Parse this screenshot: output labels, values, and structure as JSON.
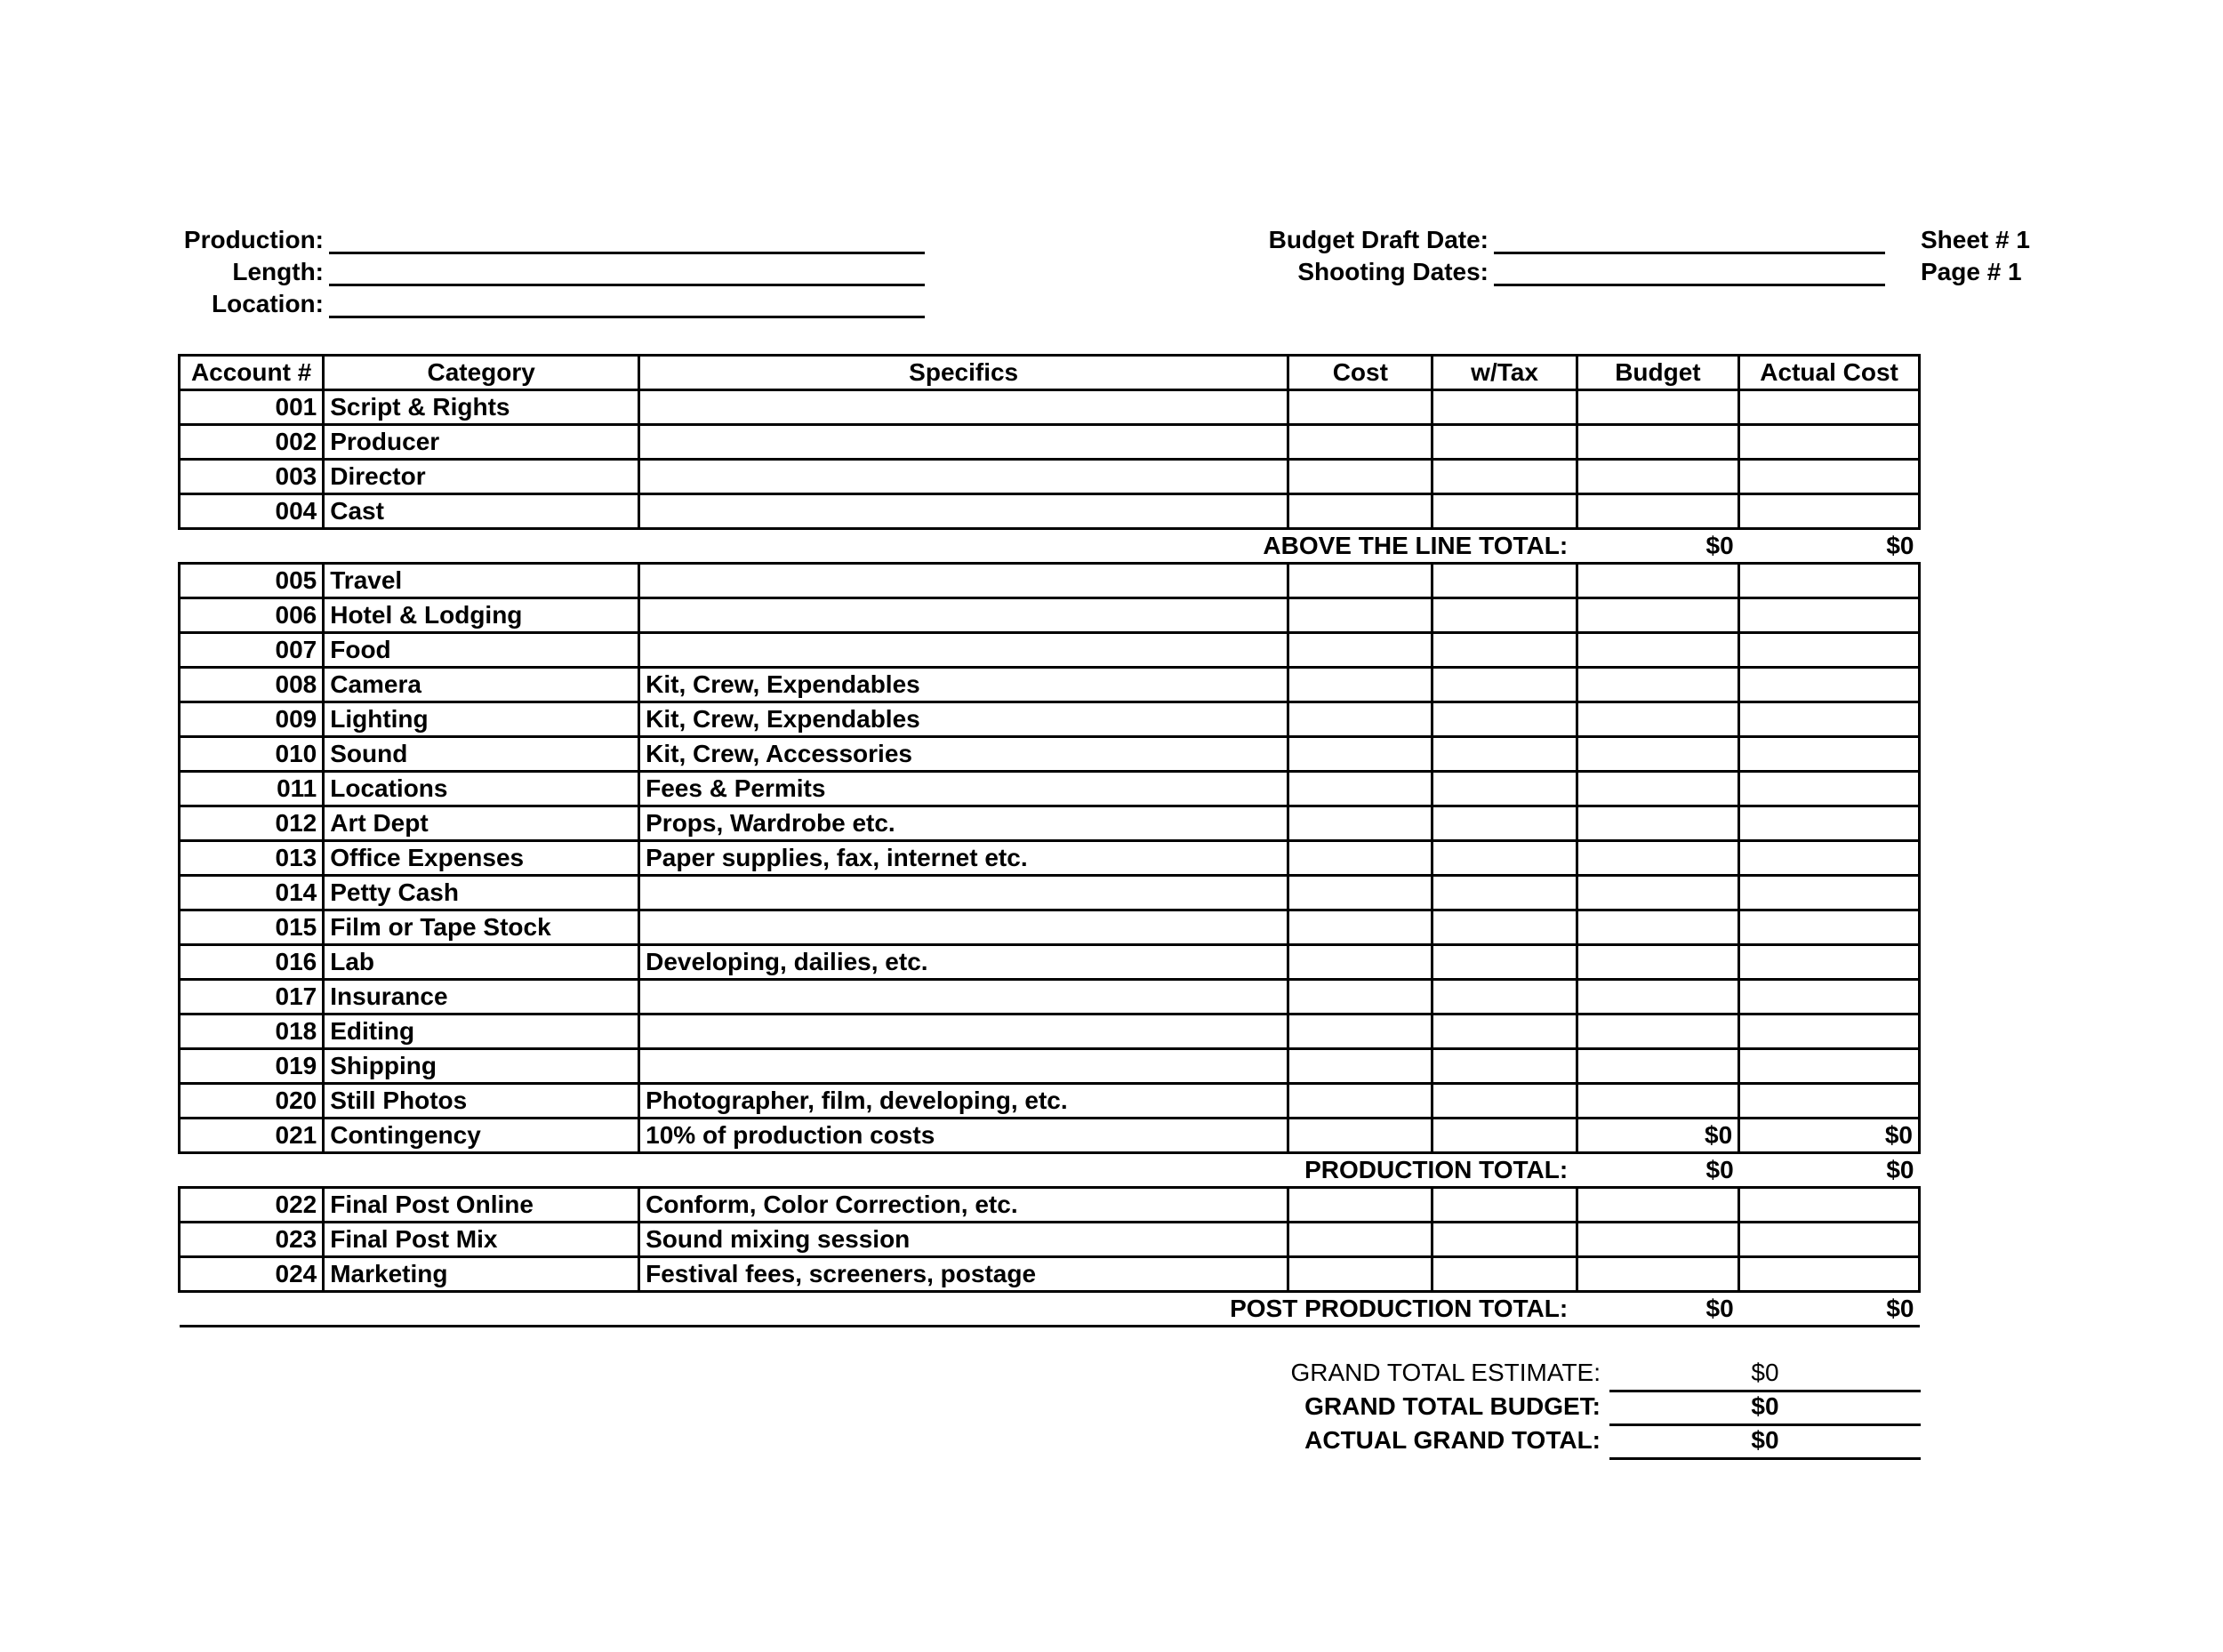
{
  "header": {
    "production_label": "Production:",
    "length_label": "Length:",
    "location_label": "Location:",
    "budget_draft_label": "Budget Draft Date:",
    "shooting_dates_label": "Shooting Dates:",
    "sheet_label": "Sheet # 1",
    "page_label": "Page # 1"
  },
  "columns": {
    "account": "Account #",
    "category": "Category",
    "specifics": "Specifics",
    "cost": "Cost",
    "wtax": "w/Tax",
    "budget": "Budget",
    "actual": "Actual Cost"
  },
  "above_line": [
    {
      "acc": "001",
      "cat": "Script & Rights",
      "spec": "",
      "cost": "",
      "tax": "",
      "bud": "",
      "act": ""
    },
    {
      "acc": "002",
      "cat": "Producer",
      "spec": "",
      "cost": "",
      "tax": "",
      "bud": "",
      "act": ""
    },
    {
      "acc": "003",
      "cat": "Director",
      "spec": "",
      "cost": "",
      "tax": "",
      "bud": "",
      "act": ""
    },
    {
      "acc": "004",
      "cat": "Cast",
      "spec": "",
      "cost": "",
      "tax": "",
      "bud": "",
      "act": ""
    }
  ],
  "above_line_total": {
    "label": "ABOVE THE LINE TOTAL:",
    "bud": "$0",
    "act": "$0"
  },
  "production": [
    {
      "acc": "005",
      "cat": "Travel",
      "spec": "",
      "cost": "",
      "tax": "",
      "bud": "",
      "act": ""
    },
    {
      "acc": "006",
      "cat": "Hotel & Lodging",
      "spec": "",
      "cost": "",
      "tax": "",
      "bud": "",
      "act": ""
    },
    {
      "acc": "007",
      "cat": "Food",
      "spec": "",
      "cost": "",
      "tax": "",
      "bud": "",
      "act": ""
    },
    {
      "acc": "008",
      "cat": "Camera",
      "spec": "Kit, Crew, Expendables",
      "cost": "",
      "tax": "",
      "bud": "",
      "act": ""
    },
    {
      "acc": "009",
      "cat": "Lighting",
      "spec": "Kit, Crew, Expendables",
      "cost": "",
      "tax": "",
      "bud": "",
      "act": ""
    },
    {
      "acc": "010",
      "cat": "Sound",
      "spec": "Kit, Crew, Accessories",
      "cost": "",
      "tax": "",
      "bud": "",
      "act": ""
    },
    {
      "acc": "011",
      "cat": "Locations",
      "spec": "Fees & Permits",
      "cost": "",
      "tax": "",
      "bud": "",
      "act": ""
    },
    {
      "acc": "012",
      "cat": "Art Dept",
      "spec": "Props, Wardrobe etc.",
      "cost": "",
      "tax": "",
      "bud": "",
      "act": ""
    },
    {
      "acc": "013",
      "cat": "Office Expenses",
      "spec": "Paper supplies, fax, internet etc.",
      "cost": "",
      "tax": "",
      "bud": "",
      "act": ""
    },
    {
      "acc": "014",
      "cat": "Petty Cash",
      "spec": "",
      "cost": "",
      "tax": "",
      "bud": "",
      "act": ""
    },
    {
      "acc": "015",
      "cat": "Film or Tape Stock",
      "spec": "",
      "cost": "",
      "tax": "",
      "bud": "",
      "act": ""
    },
    {
      "acc": "016",
      "cat": "Lab",
      "spec": "Developing, dailies, etc.",
      "cost": "",
      "tax": "",
      "bud": "",
      "act": ""
    },
    {
      "acc": "017",
      "cat": "Insurance",
      "spec": "",
      "cost": "",
      "tax": "",
      "bud": "",
      "act": ""
    },
    {
      "acc": "018",
      "cat": "Editing",
      "spec": "",
      "cost": "",
      "tax": "",
      "bud": "",
      "act": ""
    },
    {
      "acc": "019",
      "cat": "Shipping",
      "spec": "",
      "cost": "",
      "tax": "",
      "bud": "",
      "act": ""
    },
    {
      "acc": "020",
      "cat": "Still Photos",
      "spec": "Photographer, film, developing, etc.",
      "cost": "",
      "tax": "",
      "bud": "",
      "act": ""
    },
    {
      "acc": "021",
      "cat": "Contingency",
      "spec": "10% of production costs",
      "cost": "",
      "tax": "",
      "bud": "$0",
      "act": "$0"
    }
  ],
  "production_total": {
    "label": "PRODUCTION TOTAL:",
    "bud": "$0",
    "act": "$0"
  },
  "post": [
    {
      "acc": "022",
      "cat": "Final Post Online",
      "spec": "Conform, Color Correction, etc.",
      "cost": "",
      "tax": "",
      "bud": "",
      "act": ""
    },
    {
      "acc": "023",
      "cat": "Final Post Mix",
      "spec": "Sound mixing session",
      "cost": "",
      "tax": "",
      "bud": "",
      "act": ""
    },
    {
      "acc": "024",
      "cat": "Marketing",
      "spec": "Festival fees, screeners, postage",
      "cost": "",
      "tax": "",
      "bud": "",
      "act": ""
    }
  ],
  "post_total": {
    "label": "POST PRODUCTION TOTAL:",
    "bud": "$0",
    "act": "$0"
  },
  "grand": {
    "estimate_label": "GRAND TOTAL ESTIMATE:",
    "estimate_val": "$0",
    "budget_label": "GRAND TOTAL BUDGET:",
    "budget_val": "$0",
    "actual_label": "ACTUAL GRAND TOTAL:",
    "actual_val": "$0"
  },
  "style": {
    "background_color": "#ffffff",
    "text_color": "#000000",
    "border_color": "#000000",
    "font_family": "Arial",
    "header_fontsize": 28,
    "cell_fontsize": 28,
    "border_width": 3
  }
}
